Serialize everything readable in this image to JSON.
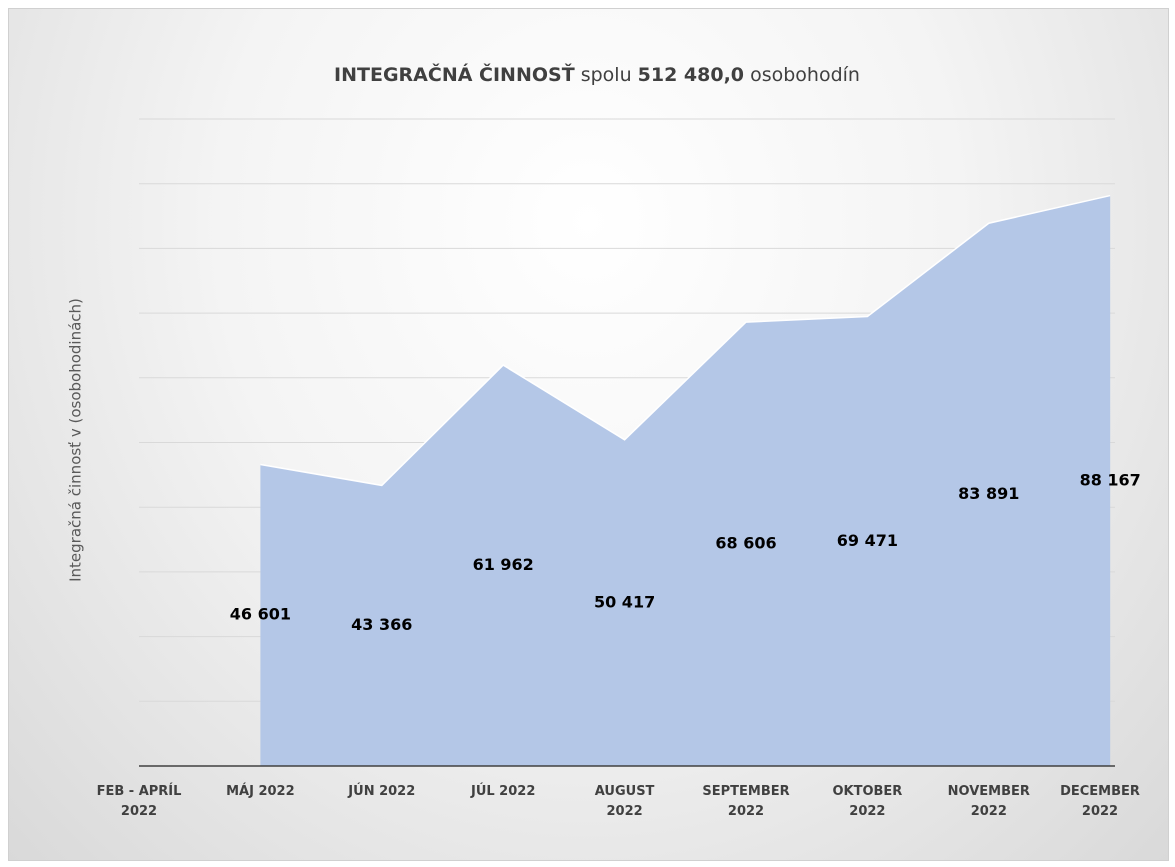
{
  "chart_data": {
    "type": "area",
    "title": [
      {
        "text": "INTEGRAČNÁ  ČINNOSŤ",
        "bold": true
      },
      {
        "text": "spolu",
        "bold": false
      },
      {
        "text": "512 480,0",
        "bold": true
      },
      {
        "text": "osobohodín",
        "bold": false
      }
    ],
    "y_label": "Integračná činnosť v (osobohodinách)",
    "categories": [
      "FEB - APRÍL\n2022",
      "MÁJ 2022",
      "JÚN 2022",
      "JÚL 2022",
      "AUGUST\n2022",
      "SEPTEMBER\n2022",
      "OKTOBER\n2022",
      "NOVEMBER\n2022",
      "DECEMBER\n2022"
    ],
    "values": [
      null,
      46601,
      43366,
      61962,
      50417,
      68606,
      69471,
      83891,
      88167
    ],
    "value_labels": [
      null,
      "46 601",
      "43 366",
      "61 962",
      "50 417",
      "68 606",
      "69 471",
      "83 891",
      "88 167"
    ],
    "color": "#b4c7e7",
    "ylim": [
      0,
      100000
    ],
    "yticks": [
      0,
      10000,
      20000,
      30000,
      40000,
      50000,
      60000,
      70000,
      80000,
      90000,
      100000
    ],
    "grid": true
  }
}
